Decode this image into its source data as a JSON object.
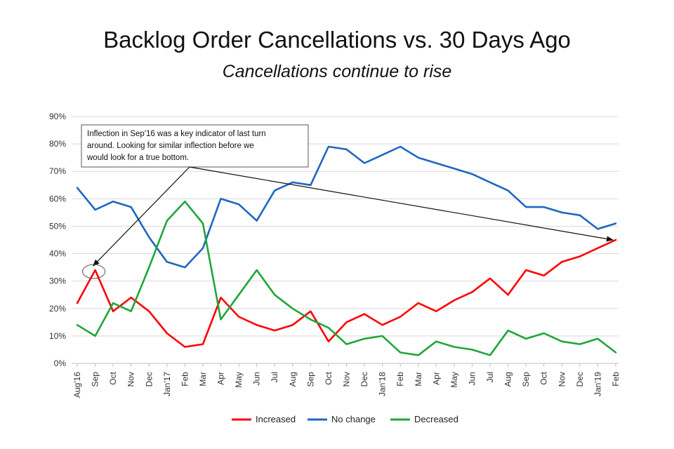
{
  "title": "Backlog Order Cancellations vs. 30 Days Ago",
  "subtitle": "Cancellations continue to rise",
  "chart_data": {
    "type": "line",
    "title": "Backlog Order Cancellations vs. 30 Days Ago",
    "subtitle": "Cancellations continue to rise",
    "xlabel": "",
    "ylabel": "",
    "ylim": [
      0,
      90
    ],
    "yticks": [
      "0%",
      "10%",
      "20%",
      "30%",
      "40%",
      "50%",
      "60%",
      "70%",
      "80%",
      "90%"
    ],
    "grid": true,
    "legend_position": "bottom",
    "categories": [
      "Aug'16",
      "Sep",
      "Oct",
      "Nov",
      "Dec",
      "Jan'17",
      "Feb",
      "Mar",
      "Apr",
      "May",
      "Jun",
      "Jul",
      "Aug",
      "Sep",
      "Oct",
      "Nov",
      "Dec",
      "Jan'18",
      "Feb",
      "Mar",
      "Apr",
      "May",
      "Jun",
      "Jul",
      "Aug",
      "Sep",
      "Oct",
      "Nov",
      "Dec",
      "Jan'19",
      "Feb"
    ],
    "series": [
      {
        "name": "Increased",
        "color": "#ff0000",
        "values": [
          22,
          34,
          19,
          24,
          19,
          11,
          6,
          7,
          24,
          17,
          14,
          12,
          14,
          19,
          8,
          15,
          18,
          14,
          17,
          22,
          19,
          23,
          26,
          31,
          25,
          34,
          32,
          37,
          39,
          42,
          45
        ]
      },
      {
        "name": "No change",
        "color": "#1f66c1",
        "values": [
          64,
          56,
          59,
          57,
          46,
          37,
          35,
          42,
          60,
          58,
          52,
          63,
          66,
          65,
          79,
          78,
          73,
          76,
          79,
          75,
          73,
          71,
          69,
          66,
          63,
          57,
          57,
          55,
          54,
          49,
          51
        ]
      },
      {
        "name": "Decreased",
        "color": "#1fa63a",
        "values": [
          14,
          10,
          22,
          19,
          35,
          52,
          59,
          51,
          16,
          25,
          34,
          25,
          20,
          16,
          13,
          7,
          9,
          10,
          4,
          3,
          8,
          6,
          5,
          3,
          12,
          9,
          11,
          8,
          7,
          9,
          4
        ]
      }
    ],
    "annotation": {
      "text": "Inflection in Sep'16 was a key indicator of last turn around.  Looking for similar inflection before we would look for a true bottom.",
      "lines": [
        "Inflection in Sep'16 was a key indicator of last turn",
        "around.  Looking for similar inflection before we",
        "would look for a true bottom."
      ]
    }
  }
}
